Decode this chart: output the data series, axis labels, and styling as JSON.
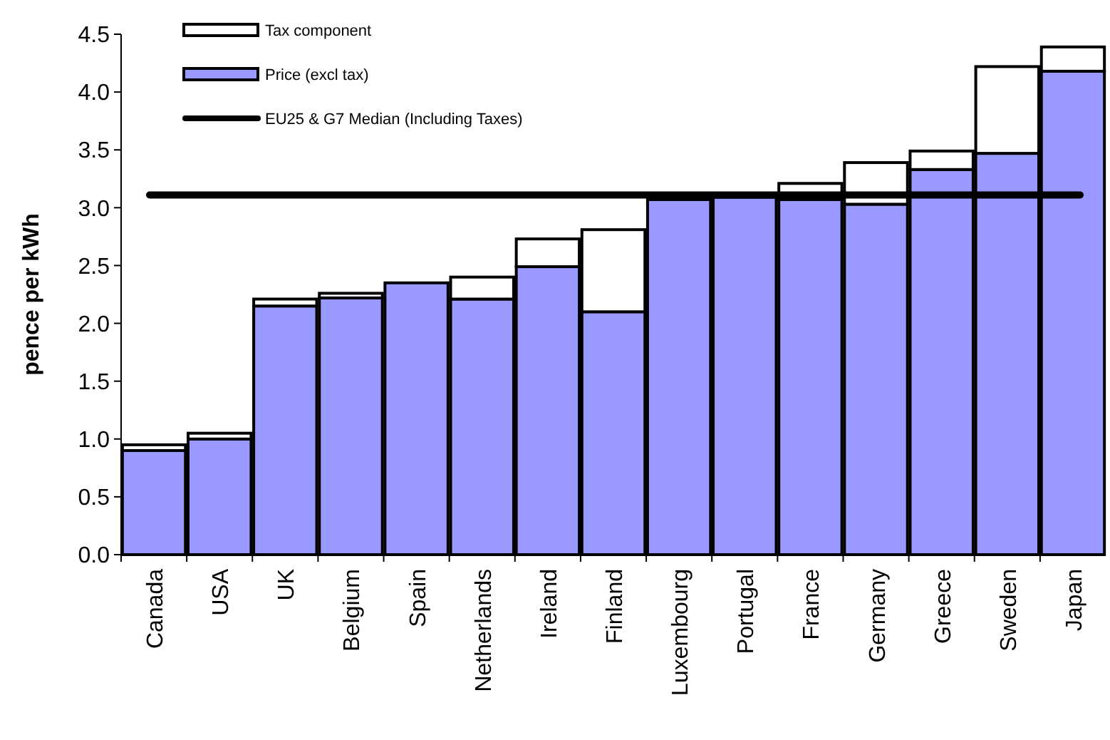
{
  "chart_data": {
    "type": "bar",
    "stacked": true,
    "ylabel": "pence per kWh",
    "categories": [
      "Canada",
      "USA",
      "UK",
      "Belgium",
      "Spain",
      "Netherlands",
      "Ireland",
      "Finland",
      "Luxembourg",
      "Portugal",
      "France",
      "Germany",
      "Greece",
      "Sweden",
      "Japan"
    ],
    "series": [
      {
        "name": "Price (excl tax)",
        "color": "#9999ff",
        "values": [
          0.9,
          1.0,
          2.15,
          2.22,
          2.35,
          2.21,
          2.49,
          2.1,
          3.07,
          3.09,
          3.07,
          3.03,
          3.33,
          3.47,
          4.18
        ]
      },
      {
        "name": "Tax component",
        "color": "#ffffff",
        "values": [
          0.05,
          0.05,
          0.06,
          0.04,
          0,
          0.19,
          0.24,
          0.71,
          0,
          0,
          0.14,
          0.36,
          0.16,
          0.75,
          0.21
        ]
      }
    ],
    "ref_lines": [
      {
        "axis": "y",
        "value": 3.11,
        "label": "EU25 & G7 Median (Including Taxes)",
        "color": "#000000"
      }
    ],
    "ylim": [
      0,
      4.5
    ],
    "yticks": [
      {
        "value": 0,
        "label": "0.0"
      },
      {
        "value": 0.5,
        "label": "0.5"
      },
      {
        "value": 1,
        "label": "1.0"
      },
      {
        "value": 1.5,
        "label": "1.5"
      },
      {
        "value": 2,
        "label": "2.0"
      },
      {
        "value": 2.5,
        "label": "2.5"
      },
      {
        "value": 3,
        "label": "3.0"
      },
      {
        "value": 3.5,
        "label": "3.5"
      },
      {
        "value": 4,
        "label": "4.0"
      },
      {
        "value": 4.5,
        "label": "4.5"
      }
    ],
    "grid": false,
    "legend": "top left"
  }
}
